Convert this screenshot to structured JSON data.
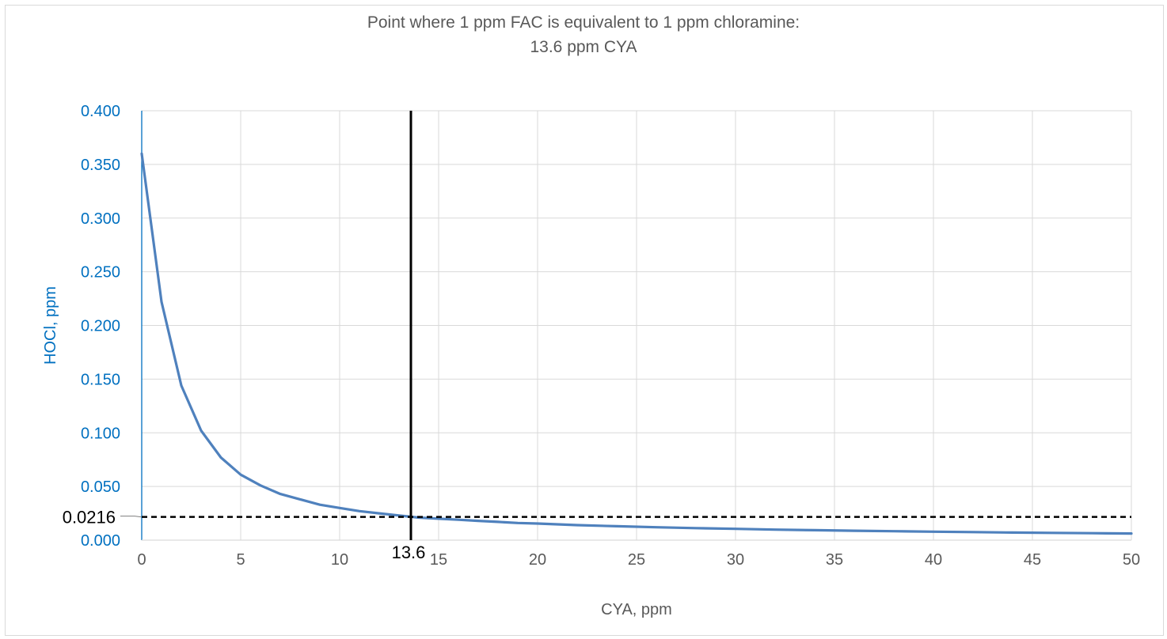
{
  "chart_data": {
    "type": "line",
    "title_line1": "Point where 1 ppm FAC is equivalent to 1 ppm chloramine:",
    "title_line2": "13.6 ppm CYA",
    "xlabel": "CYA, ppm",
    "ylabel": "HOCl, ppm",
    "xlim": [
      0,
      50
    ],
    "ylim": [
      0,
      0.4
    ],
    "x_ticks": [
      "0",
      "5",
      "10",
      "15",
      "20",
      "25",
      "30",
      "35",
      "40",
      "45",
      "50"
    ],
    "y_ticks": [
      "0.000",
      "0.050",
      "0.100",
      "0.150",
      "0.200",
      "0.250",
      "0.300",
      "0.350",
      "0.400"
    ],
    "grid": true,
    "series": [
      {
        "x": [
          0,
          1,
          2,
          3,
          4,
          5,
          6,
          7,
          8,
          9,
          10,
          11,
          12,
          13,
          14,
          15,
          16,
          17,
          18,
          19,
          20,
          22,
          24,
          26,
          28,
          30,
          32,
          34,
          36,
          38,
          40,
          42,
          44,
          46,
          48,
          50
        ],
        "y": [
          0.36,
          0.222,
          0.144,
          0.102,
          0.077,
          0.061,
          0.051,
          0.043,
          0.038,
          0.033,
          0.03,
          0.027,
          0.025,
          0.023,
          0.021,
          0.02,
          0.019,
          0.018,
          0.017,
          0.016,
          0.0155,
          0.014,
          0.013,
          0.012,
          0.0112,
          0.0105,
          0.0098,
          0.0093,
          0.0088,
          0.0083,
          0.0079,
          0.0075,
          0.0071,
          0.0068,
          0.0065,
          0.0062
        ]
      }
    ],
    "reference_lines": {
      "vertical_x": 13.6,
      "vertical_label": "13.6",
      "horizontal_y": 0.0216,
      "horizontal_label": "0.0216"
    },
    "colors": {
      "series": "#4f81bd",
      "axis_text": "#0070c0",
      "tick_text": "#595959",
      "grid": "#d9d9d9",
      "reference": "#000000"
    }
  }
}
